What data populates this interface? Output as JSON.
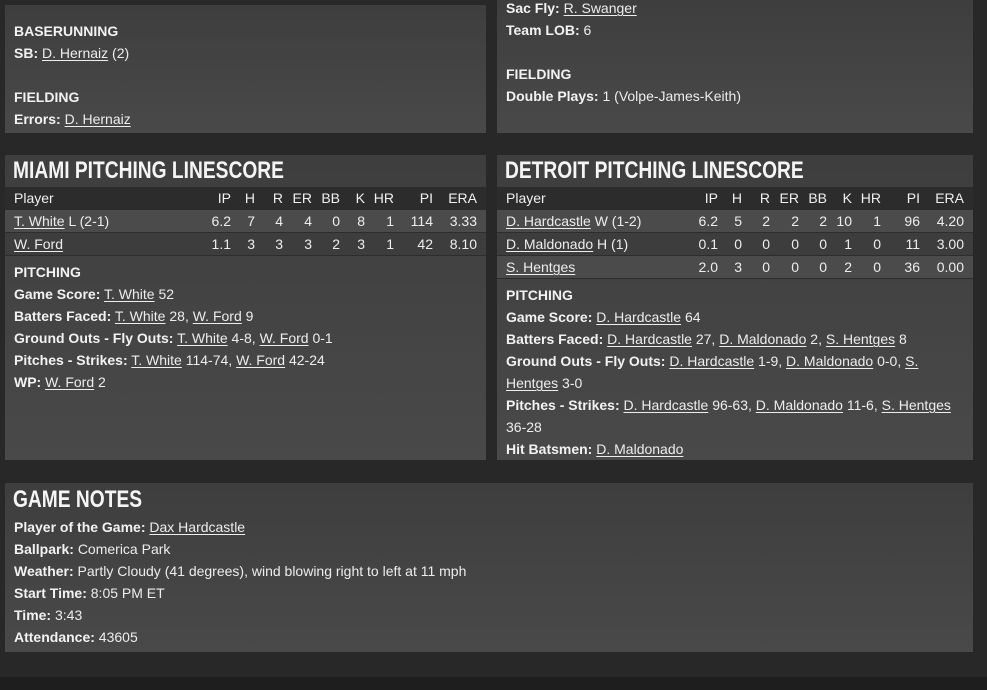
{
  "colors": {
    "page_bg": "#282828",
    "panel_bg": "#434343",
    "table_header_bg": "#2c2c2c",
    "row_light_bg": "#4b4b4b",
    "row_dark_bg": "#3d3d3d",
    "text": "#ededed",
    "footer_bg": "#1e1e1e"
  },
  "away_extras": {
    "baserunning_header": "BASERUNNING",
    "sb_label": "SB:",
    "sb_player": "D. Hernaiz",
    "sb_suffix": "(2)",
    "fielding_header": "FIELDING",
    "errors_label": "Errors:",
    "errors_player": "D. Hernaiz"
  },
  "home_extras": {
    "sac_fly_label": "Sac Fly:",
    "sac_fly_player": "R. Swanger",
    "team_lob_label": "Team LOB:",
    "team_lob_value": "6",
    "fielding_header": "FIELDING",
    "double_plays_label": "Double Plays:",
    "double_plays_value": "1 (Volpe-James-Keith)"
  },
  "miami_linescore": {
    "title": "MIAMI PITCHING LINESCORE",
    "columns": [
      "Player",
      "IP",
      "H",
      "R",
      "ER",
      "BB",
      "K",
      "HR",
      "PI",
      "ERA"
    ],
    "rows": [
      {
        "player": "T. White",
        "note": "L (2-1)",
        "stats": [
          "6.2",
          "7",
          "4",
          "4",
          "0",
          "8",
          "1",
          "114",
          "3.33"
        ]
      },
      {
        "player": "W. Ford",
        "note": "",
        "stats": [
          "1.1",
          "3",
          "3",
          "3",
          "2",
          "3",
          "1",
          "42",
          "8.10"
        ]
      }
    ],
    "section_header": "PITCHING",
    "lines": [
      {
        "label": "Game Score:",
        "segments": [
          {
            "text": "T. White",
            "link": true
          },
          {
            "text": " 52",
            "link": false
          }
        ]
      },
      {
        "label": "Batters Faced:",
        "segments": [
          {
            "text": "T. White",
            "link": true
          },
          {
            "text": " 28, ",
            "link": false
          },
          {
            "text": "W. Ford",
            "link": true
          },
          {
            "text": " 9",
            "link": false
          }
        ]
      },
      {
        "label": "Ground Outs - Fly Outs:",
        "segments": [
          {
            "text": "T. White",
            "link": true
          },
          {
            "text": " 4-8, ",
            "link": false
          },
          {
            "text": "W. Ford",
            "link": true
          },
          {
            "text": " 0-1",
            "link": false
          }
        ]
      },
      {
        "label": "Pitches - Strikes:",
        "segments": [
          {
            "text": "T. White",
            "link": true
          },
          {
            "text": " 114-74, ",
            "link": false
          },
          {
            "text": "W. Ford",
            "link": true
          },
          {
            "text": " 42-24",
            "link": false
          }
        ]
      },
      {
        "label": "WP:",
        "segments": [
          {
            "text": "W. Ford",
            "link": true
          },
          {
            "text": " 2",
            "link": false
          }
        ]
      }
    ]
  },
  "detroit_linescore": {
    "title": "DETROIT PITCHING LINESCORE",
    "columns": [
      "Player",
      "IP",
      "H",
      "R",
      "ER",
      "BB",
      "K",
      "HR",
      "PI",
      "ERA"
    ],
    "rows": [
      {
        "player": "D. Hardcastle",
        "note": "W (1-2)",
        "stats": [
          "6.2",
          "5",
          "2",
          "2",
          "2",
          "10",
          "1",
          "96",
          "4.20"
        ]
      },
      {
        "player": "D. Maldonado",
        "note": "H (1)",
        "stats": [
          "0.1",
          "0",
          "0",
          "0",
          "0",
          "1",
          "0",
          "11",
          "3.00"
        ]
      },
      {
        "player": "S. Hentges",
        "note": "",
        "stats": [
          "2.0",
          "3",
          "0",
          "0",
          "0",
          "2",
          "0",
          "36",
          "0.00"
        ]
      }
    ],
    "section_header": "PITCHING",
    "lines": [
      {
        "label": "Game Score:",
        "segments": [
          {
            "text": "D. Hardcastle",
            "link": true
          },
          {
            "text": " 64",
            "link": false
          }
        ]
      },
      {
        "label": "Batters Faced:",
        "segments": [
          {
            "text": "D. Hardcastle",
            "link": true
          },
          {
            "text": " 27, ",
            "link": false
          },
          {
            "text": "D. Maldonado",
            "link": true
          },
          {
            "text": " 2, ",
            "link": false
          },
          {
            "text": "S. Hentges",
            "link": true
          },
          {
            "text": " 8",
            "link": false
          }
        ]
      },
      {
        "label": "Ground Outs - Fly Outs:",
        "segments": [
          {
            "text": "D. Hardcastle",
            "link": true
          },
          {
            "text": " 1-9, ",
            "link": false
          },
          {
            "text": "D. Maldonado",
            "link": true
          },
          {
            "text": " 0-0, ",
            "link": false
          },
          {
            "text": "S. Hentges",
            "link": true
          },
          {
            "text": " 3-0",
            "link": false
          }
        ]
      },
      {
        "label": "Pitches - Strikes:",
        "segments": [
          {
            "text": "D. Hardcastle",
            "link": true
          },
          {
            "text": " 96-63, ",
            "link": false
          },
          {
            "text": "D. Maldonado",
            "link": true
          },
          {
            "text": " 11-6, ",
            "link": false
          },
          {
            "text": "S. Hentges",
            "link": true
          },
          {
            "text": " 36-28",
            "link": false
          }
        ]
      },
      {
        "label": "Hit Batsmen:",
        "segments": [
          {
            "text": "D. Maldonado",
            "link": true
          }
        ]
      }
    ]
  },
  "game_notes": {
    "title": "GAME NOTES",
    "potg_label": "Player of the Game:",
    "potg_player": "Dax Hardcastle",
    "ballpark_label": "Ballpark:",
    "ballpark_value": "Comerica Park",
    "weather_label": "Weather:",
    "weather_value": "Partly Cloudy (41 degrees), wind blowing right to left at 11 mph",
    "start_time_label": "Start Time:",
    "start_time_value": "8:05 PM ET",
    "time_label": "Time:",
    "time_value": "3:43",
    "attendance_label": "Attendance:",
    "attendance_value": "43605"
  }
}
